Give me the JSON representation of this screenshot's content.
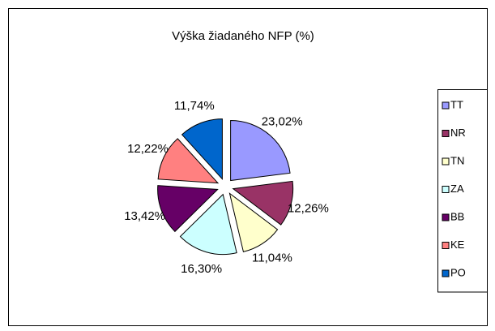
{
  "chart_data": {
    "type": "pie",
    "title": "Výška žiadaného NFP (%)",
    "categories": [
      "TT",
      "NR",
      "TN",
      "ZA",
      "BB",
      "KE",
      "PO"
    ],
    "values": [
      23.02,
      12.26,
      11.04,
      16.3,
      13.42,
      12.22,
      11.74
    ],
    "value_labels": [
      "23,02%",
      "12,26%",
      "11,04%",
      "16,30%",
      "13,42%",
      "12,22%",
      "11,74%"
    ],
    "colors": [
      "#9999ff",
      "#993366",
      "#ffffcc",
      "#ccffff",
      "#660066",
      "#ff8080",
      "#0066cc"
    ],
    "legend": "right"
  }
}
